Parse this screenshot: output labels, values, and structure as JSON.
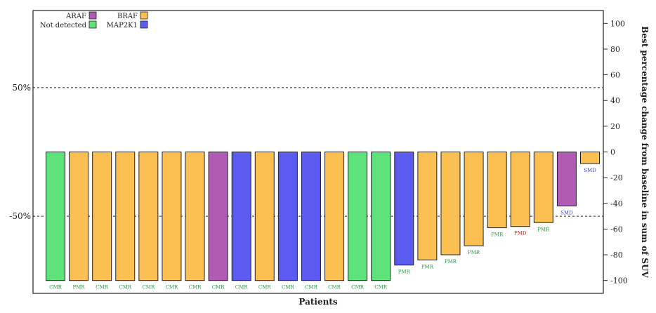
{
  "chart_data": {
    "type": "bar",
    "title": "",
    "xlabel": "Patients",
    "ylabel": "Best percentage change from baseline in sum of SUV",
    "ylim": [
      -110,
      110
    ],
    "yticks": [
      100,
      80,
      60,
      40,
      20,
      0,
      -20,
      -40,
      -60,
      -80,
      -100
    ],
    "reference_lines": [
      {
        "value": 50,
        "label": "50%"
      },
      {
        "value": -50,
        "label": "-50%"
      }
    ],
    "grid": false,
    "legend_position": "top-right",
    "legend": [
      {
        "key": "ARAF",
        "label": "ARAF"
      },
      {
        "key": "BRAF",
        "label": "BRAF"
      },
      {
        "key": "not_detected",
        "label": "Not detected"
      },
      {
        "key": "MAP2K1",
        "label": "MAP2K1"
      }
    ],
    "colors": {
      "BRAF": "#fbbf52",
      "ARAF": "#b05cb5",
      "MAP2K1": "#5b5bf0",
      "not_detected": "#5ee27a",
      "response_CMR": "#2a9a45",
      "response_PMR": "#2a9a45",
      "response_PMD": "#d02020",
      "response_SMD": "#4040c8"
    },
    "bars": [
      {
        "value": -100,
        "mutation": "not_detected",
        "response": "CMR"
      },
      {
        "value": -100,
        "mutation": "BRAF",
        "response": "PMR"
      },
      {
        "value": -100,
        "mutation": "BRAF",
        "response": "CMR"
      },
      {
        "value": -100,
        "mutation": "BRAF",
        "response": "CMR"
      },
      {
        "value": -100,
        "mutation": "BRAF",
        "response": "CMR"
      },
      {
        "value": -100,
        "mutation": "BRAF",
        "response": "CMR"
      },
      {
        "value": -100,
        "mutation": "BRAF",
        "response": "CMR"
      },
      {
        "value": -100,
        "mutation": "ARAF",
        "response": "CMR"
      },
      {
        "value": -100,
        "mutation": "MAP2K1",
        "response": "CMR"
      },
      {
        "value": -100,
        "mutation": "BRAF",
        "response": "CMR"
      },
      {
        "value": -100,
        "mutation": "MAP2K1",
        "response": "CMR"
      },
      {
        "value": -100,
        "mutation": "MAP2K1",
        "response": "CMR"
      },
      {
        "value": -100,
        "mutation": "BRAF",
        "response": "CMR"
      },
      {
        "value": -100,
        "mutation": "not_detected",
        "response": "CMR"
      },
      {
        "value": -100,
        "mutation": "not_detected",
        "response": "CMR"
      },
      {
        "value": -88,
        "mutation": "MAP2K1",
        "response": "PMR"
      },
      {
        "value": -84,
        "mutation": "BRAF",
        "response": "PMR"
      },
      {
        "value": -80,
        "mutation": "BRAF",
        "response": "PMR"
      },
      {
        "value": -73,
        "mutation": "BRAF",
        "response": "PMR"
      },
      {
        "value": -59,
        "mutation": "BRAF",
        "response": "PMR"
      },
      {
        "value": -58,
        "mutation": "BRAF",
        "response": "PMD"
      },
      {
        "value": -55,
        "mutation": "BRAF",
        "response": "PMR"
      },
      {
        "value": -42,
        "mutation": "ARAF",
        "response": "SMD"
      },
      {
        "value": -9,
        "mutation": "BRAF",
        "response": "SMD"
      }
    ]
  }
}
